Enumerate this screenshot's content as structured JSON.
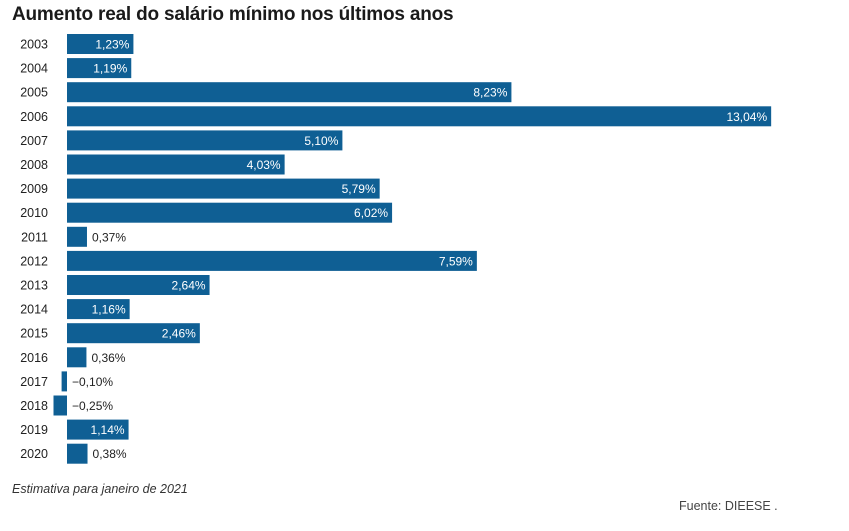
{
  "chart_data": {
    "type": "bar",
    "orientation": "horizontal",
    "title": "Aumento real do salário mínimo nos últimos anos",
    "categories": [
      "2003",
      "2004",
      "2005",
      "2006",
      "2007",
      "2008",
      "2009",
      "2010",
      "2011",
      "2012",
      "2013",
      "2014",
      "2015",
      "2016",
      "2017",
      "2018",
      "2019",
      "2020"
    ],
    "values": [
      1.23,
      1.19,
      8.23,
      13.04,
      5.1,
      4.03,
      5.79,
      6.02,
      0.37,
      7.59,
      2.64,
      1.16,
      2.46,
      0.36,
      -0.1,
      -0.25,
      1.14,
      0.38
    ],
    "value_labels": [
      "1,23%",
      "1,19%",
      "8,23%",
      "13,04%",
      "5,10%",
      "4,03%",
      "5,79%",
      "6,02%",
      "0,37%",
      "7,59%",
      "2,64%",
      "1,16%",
      "2,46%",
      "0,36%",
      "−0,10%",
      "−0,25%",
      "1,14%",
      "0,38%"
    ],
    "bar_color": "#0f5f94",
    "grid": false,
    "legend": "none"
  },
  "footnote": "Estimativa para janeiro de 2021",
  "source": "Fuente: DIEESE ."
}
